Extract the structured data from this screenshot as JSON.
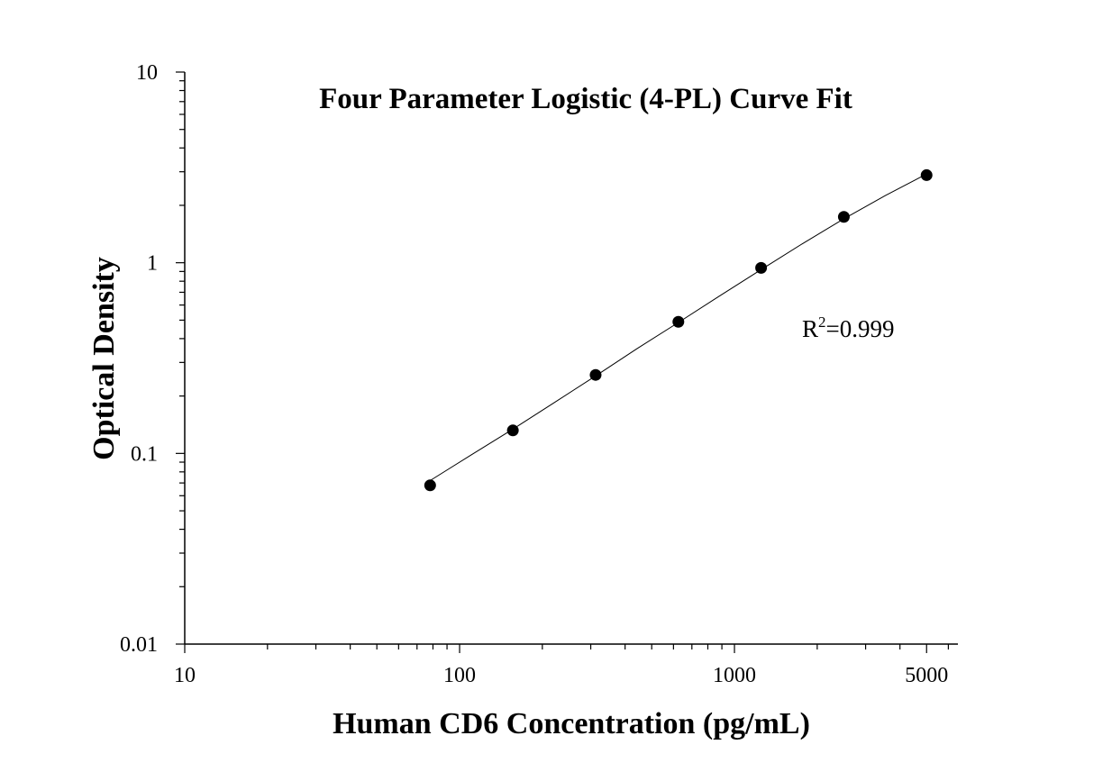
{
  "chart_data": {
    "type": "scatter",
    "title": "Four Parameter Logistic (4-PL) Curve Fit",
    "xlabel": "Human CD6 Concentration (pg/mL)",
    "ylabel": "Optical Density",
    "x_scale": "log",
    "y_scale": "log",
    "xlim": [
      10,
      6500
    ],
    "ylim": [
      0.01,
      10
    ],
    "x_ticks": [
      {
        "value": 10,
        "label": "10"
      },
      {
        "value": 100,
        "label": "100"
      },
      {
        "value": 1000,
        "label": "1000"
      },
      {
        "value": 5000,
        "label": "5000"
      }
    ],
    "y_ticks": [
      {
        "value": 0.01,
        "label": "0.01"
      },
      {
        "value": 0.1,
        "label": "0.1"
      },
      {
        "value": 1,
        "label": "1"
      },
      {
        "value": 10,
        "label": "10"
      }
    ],
    "series": [
      {
        "x": [
          78.125,
          156.25,
          312.5,
          625,
          1250,
          2500,
          5000
        ],
        "y": [
          0.068,
          0.132,
          0.258,
          0.49,
          0.94,
          1.74,
          2.88
        ],
        "marker": "circle",
        "color": "#000000"
      }
    ],
    "fit_curve": {
      "model": "4-PL",
      "x": [
        78.125,
        110,
        156.25,
        220,
        312.5,
        440,
        625,
        880,
        1250,
        1770,
        2500,
        3540,
        5000
      ],
      "y": [
        0.072,
        0.098,
        0.134,
        0.184,
        0.255,
        0.353,
        0.486,
        0.668,
        0.92,
        1.26,
        1.7,
        2.25,
        2.92
      ],
      "color": "#000000"
    },
    "annotation": {
      "base": "R",
      "superscript": "2",
      "text": "=0.999"
    },
    "grid": false,
    "legend": "none"
  }
}
